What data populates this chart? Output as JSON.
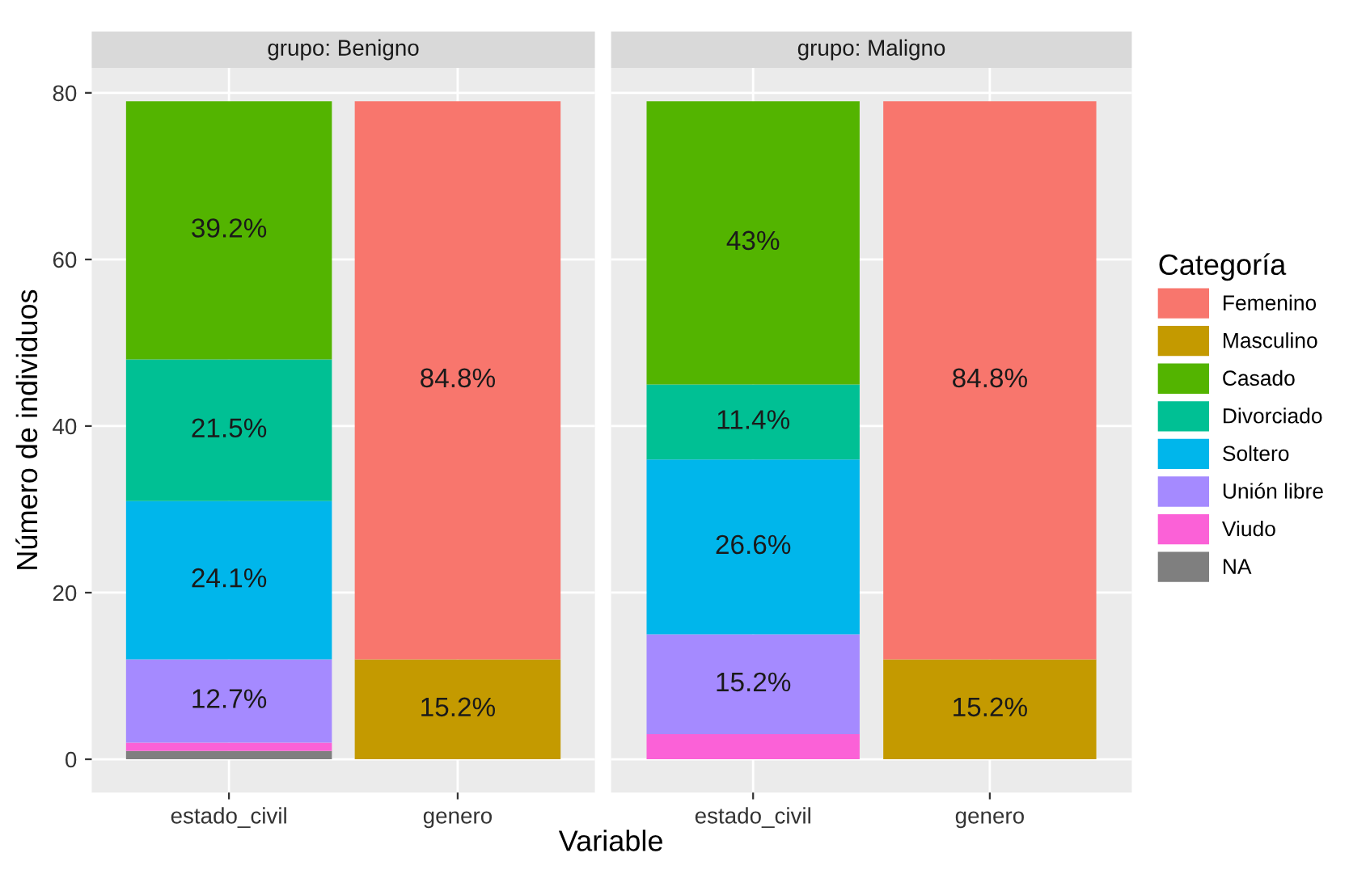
{
  "chart_data": [
    {
      "type": "bar",
      "stacked": true,
      "title": "grupo: Benigno",
      "xlabel": "Variable",
      "ylabel": "Número de individuos",
      "legend_title": "Categoría",
      "categories": [
        "estado_civil",
        "genero"
      ],
      "ylim": [
        -4,
        83
      ],
      "yticks": [
        0,
        20,
        40,
        60,
        80
      ],
      "grid": true,
      "legend": "right",
      "series": [
        {
          "name": "NA",
          "color": "#7f7f7f",
          "values": [
            1,
            null
          ]
        },
        {
          "name": "Viudo",
          "color": "#fb61d7",
          "values": [
            1,
            null
          ]
        },
        {
          "name": "Unión libre",
          "color": "#a58aff",
          "values": [
            10,
            null
          ]
        },
        {
          "name": "Soltero",
          "color": "#00b6eb",
          "values": [
            19,
            null
          ]
        },
        {
          "name": "Divorciado",
          "color": "#00c094",
          "values": [
            17,
            null
          ]
        },
        {
          "name": "Casado",
          "color": "#53b400",
          "values": [
            31,
            null
          ]
        },
        {
          "name": "Masculino",
          "color": "#c49a00",
          "values": [
            null,
            12
          ]
        },
        {
          "name": "Femenino",
          "color": "#f8766d",
          "values": [
            null,
            67
          ]
        }
      ],
      "annotations": [
        "12.7%",
        "24.1%",
        "21.5%",
        "39.2%",
        "15.2%",
        "84.8%"
      ]
    },
    {
      "type": "bar",
      "stacked": true,
      "title": "grupo: Maligno",
      "categories": [
        "estado_civil",
        "genero"
      ],
      "ylim": [
        -4,
        83
      ],
      "yticks": [
        0,
        20,
        40,
        60,
        80
      ],
      "tick_labels": "x",
      "grid": true,
      "series": [
        {
          "color": "#fb61d7",
          "values": [
            3,
            null
          ]
        },
        {
          "color": "#a58aff",
          "values": [
            12,
            null
          ]
        },
        {
          "color": "#00b6eb",
          "values": [
            21,
            null
          ]
        },
        {
          "color": "#00c094",
          "values": [
            9,
            null
          ]
        },
        {
          "color": "#53b400",
          "values": [
            34,
            null
          ]
        },
        {
          "color": "#c49a00",
          "values": [
            null,
            12
          ]
        },
        {
          "color": "#f8766d",
          "values": [
            null,
            67
          ]
        }
      ],
      "annotations": [
        "15.2%",
        "26.6%",
        "11.4%",
        "43%",
        "15.2%",
        "84.8%"
      ]
    }
  ]
}
